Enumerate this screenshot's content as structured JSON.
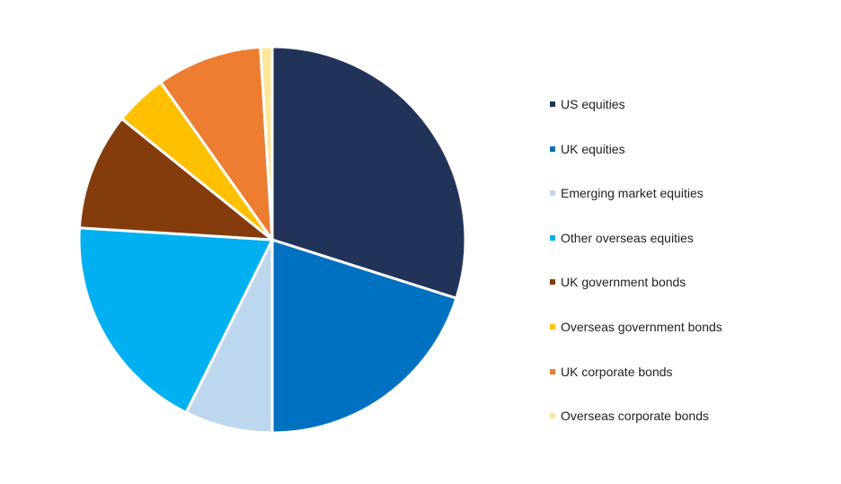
{
  "chart_data": {
    "type": "pie",
    "title": "",
    "legend_position": "right",
    "unit": "percent",
    "series": [
      {
        "name": "US equities",
        "value": 30.5,
        "color": "#22335a"
      },
      {
        "name": "UK equities",
        "value": 20.5,
        "color": "#0070c0"
      },
      {
        "name": "Emerging market equities",
        "value": 7.5,
        "color": "#bdd7ee"
      },
      {
        "name": "Other overseas equities",
        "value": 19.0,
        "color": "#00b0f0"
      },
      {
        "name": "UK government bonds",
        "value": 10.0,
        "color": "#843c0c"
      },
      {
        "name": "Overseas government bonds",
        "value": 4.5,
        "color": "#ffc000"
      },
      {
        "name": "UK corporate bonds",
        "value": 9.0,
        "color": "#ed7d31"
      },
      {
        "name": "Overseas corporate bonds",
        "value": 1.0,
        "color": "#ffe699"
      }
    ]
  }
}
